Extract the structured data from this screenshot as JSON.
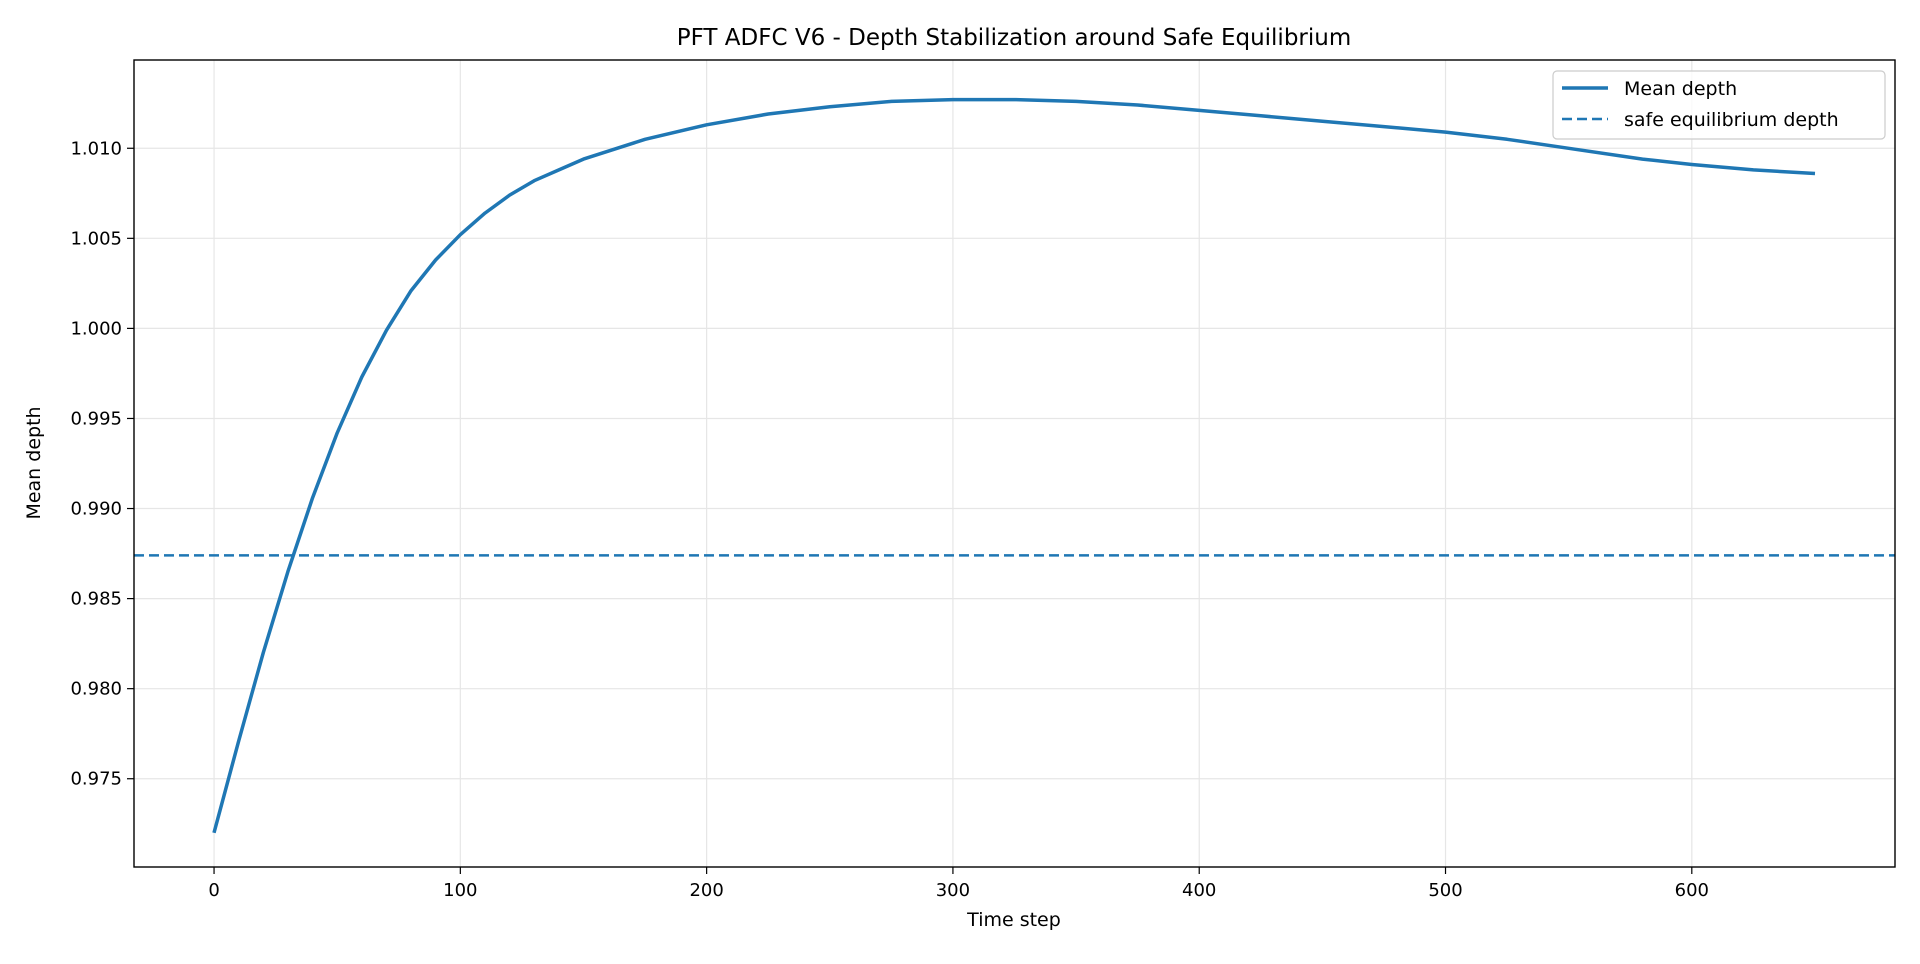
{
  "chart_data": {
    "type": "line",
    "title": "PFT ADFC V6 - Depth Stabilization around Safe Equilibrium",
    "xlabel": "Time step",
    "ylabel": "Mean depth",
    "xlim": [
      -32.5,
      682.5
    ],
    "ylim": [
      0.9701,
      1.0149
    ],
    "x_ticks": [
      0,
      100,
      200,
      300,
      400,
      500,
      600
    ],
    "y_ticks": [
      0.975,
      0.98,
      0.985,
      0.99,
      0.995,
      1.0,
      1.005,
      1.01
    ],
    "y_tick_labels": [
      "0.975",
      "0.980",
      "0.985",
      "0.990",
      "0.995",
      "1.000",
      "1.005",
      "1.010"
    ],
    "grid": true,
    "legend_position": "top-right",
    "series": [
      {
        "name": "Mean depth",
        "style": "solid",
        "color": "#1f77b4",
        "x": [
          0,
          10,
          20,
          30,
          40,
          50,
          60,
          70,
          80,
          90,
          100,
          110,
          120,
          130,
          140,
          150,
          175,
          200,
          225,
          250,
          275,
          300,
          325,
          350,
          375,
          400,
          425,
          450,
          475,
          500,
          525,
          550,
          580,
          600,
          625,
          650
        ],
        "y": [
          0.972,
          0.9771,
          0.982,
          0.9865,
          0.9906,
          0.9942,
          0.9973,
          0.9999,
          1.0021,
          1.0038,
          1.0052,
          1.0064,
          1.0074,
          1.0082,
          1.0088,
          1.0094,
          1.0105,
          1.0113,
          1.0119,
          1.0123,
          1.0126,
          1.0127,
          1.0127,
          1.0126,
          1.0124,
          1.0121,
          1.0118,
          1.0115,
          1.0112,
          1.0109,
          1.0105,
          1.01,
          1.0094,
          1.0091,
          1.0088,
          1.0086
        ]
      },
      {
        "name": "safe equilibrium depth",
        "style": "dashed",
        "color": "#1f77b4",
        "y_const": 0.9874
      }
    ]
  }
}
